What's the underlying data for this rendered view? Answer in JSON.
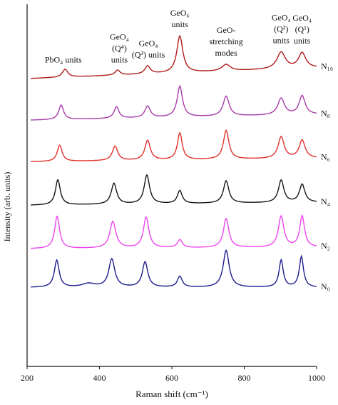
{
  "chart_data": {
    "type": "line",
    "xlabel": "Raman shift (cm⁻¹)",
    "ylabel": "Intensity (arb. units)",
    "xlim": [
      200,
      1000
    ],
    "xticks": [
      200,
      400,
      600,
      800,
      1000
    ],
    "ylim": [
      0,
      1
    ],
    "grid": false,
    "legend": "series labels at right end of each curve",
    "series": [
      {
        "name": "N₁₀",
        "color": "#b01c1c",
        "baseline": 0.795,
        "slope": 3.75e-05,
        "peaks": [
          [
            305,
            0.022,
            9
          ],
          [
            450,
            0.014,
            8
          ],
          [
            533,
            0.022,
            9
          ],
          [
            622,
            0.102,
            10
          ],
          [
            750,
            0.018,
            14
          ],
          [
            902,
            0.046,
            14
          ],
          [
            960,
            0.042,
            12
          ]
        ]
      },
      {
        "name": "N₈",
        "color": "#a83aa8",
        "baseline": 0.68,
        "slope": 2e-05,
        "peaks": [
          [
            294,
            0.04,
            8
          ],
          [
            447,
            0.032,
            8
          ],
          [
            533,
            0.032,
            9
          ],
          [
            622,
            0.085,
            9
          ],
          [
            750,
            0.055,
            10
          ],
          [
            902,
            0.046,
            11
          ],
          [
            960,
            0.052,
            10
          ]
        ]
      },
      {
        "name": "N₆",
        "color": "#e0302a",
        "baseline": 0.565,
        "slope": 1.25e-05,
        "peaks": [
          [
            290,
            0.045,
            8
          ],
          [
            443,
            0.04,
            9
          ],
          [
            533,
            0.055,
            9
          ],
          [
            622,
            0.074,
            8
          ],
          [
            750,
            0.08,
            9
          ],
          [
            902,
            0.06,
            10
          ],
          [
            960,
            0.05,
            10
          ]
        ]
      },
      {
        "name": "N₄",
        "color": "#151515",
        "baseline": 0.445,
        "slope": 1e-05,
        "peaks": [
          [
            285,
            0.07,
            8
          ],
          [
            440,
            0.058,
            9
          ],
          [
            531,
            0.08,
            9
          ],
          [
            622,
            0.036,
            8
          ],
          [
            750,
            0.062,
            9
          ],
          [
            902,
            0.062,
            9
          ],
          [
            960,
            0.05,
            9
          ]
        ]
      },
      {
        "name": "N₂",
        "color": "#ee44ee",
        "baseline": 0.325,
        "slope": 5e-06,
        "peaks": [
          [
            283,
            0.09,
            8
          ],
          [
            437,
            0.074,
            10
          ],
          [
            529,
            0.085,
            9
          ],
          [
            622,
            0.022,
            8
          ],
          [
            750,
            0.08,
            9
          ],
          [
            902,
            0.086,
            9
          ],
          [
            960,
            0.086,
            8
          ]
        ]
      },
      {
        "name": "N₀",
        "color": "#1c1c8e",
        "baseline": 0.218,
        "slope": 0.0,
        "peaks": [
          [
            282,
            0.075,
            8
          ],
          [
            370,
            0.01,
            22
          ],
          [
            434,
            0.078,
            10
          ],
          [
            526,
            0.07,
            9
          ],
          [
            622,
            0.03,
            8
          ],
          [
            750,
            0.102,
            10
          ],
          [
            902,
            0.075,
            7
          ],
          [
            958,
            0.085,
            7
          ]
        ]
      }
    ],
    "annotations": [
      {
        "lines": [
          "PbO₄ units"
        ],
        "x": 300
      },
      {
        "lines": [
          "GeO₄",
          "(Q⁴)",
          "units"
        ],
        "x": 455
      },
      {
        "lines": [
          "GeO₄",
          "(Q³) units"
        ],
        "x": 535
      },
      {
        "lines": [
          "GeO₆",
          "units"
        ],
        "x": 622
      },
      {
        "lines": [
          "GeO-",
          "stretching",
          "modes"
        ],
        "x": 750
      },
      {
        "lines": [
          "GeO₄",
          "(Q²)",
          "units"
        ],
        "x": 902
      },
      {
        "lines": [
          "GeO₄",
          "(Q¹)",
          "units"
        ],
        "x": 960
      }
    ]
  }
}
